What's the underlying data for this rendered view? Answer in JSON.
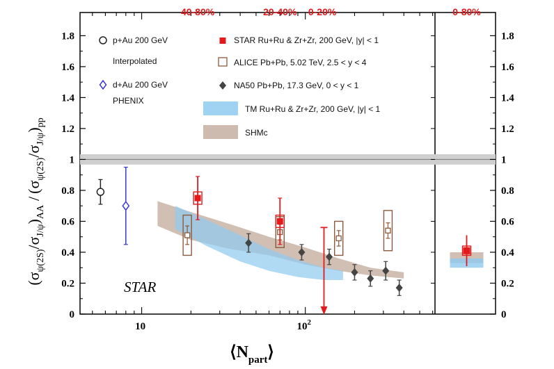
{
  "chart_data": {
    "type": "scatter",
    "ylabel": "(σψ(2S)/σJ/ψ)AA / (σψ(2S)/σJ/ψ)pp",
    "ylabel_parts": {
      "num_open": "(σ",
      "num_sub1": "ψ(2S)",
      "num_slash": "/σ",
      "num_sub2": "J/ψ",
      "num_close": ")",
      "num_aa": "AA",
      "divide": "/",
      "den_open": "(σ",
      "den_sub1": "ψ(2S)",
      "den_slash": "/σ",
      "den_sub2": "J/ψ",
      "den_close": ")",
      "den_pp": "pp"
    },
    "xlabel": "⟨Npart⟩",
    "xlabel_parts": {
      "open": "⟨N",
      "sub": "part",
      "close": "⟩"
    },
    "xscale": "log",
    "xlim": [
      4.2,
      620
    ],
    "ylim": [
      0,
      1.95
    ],
    "grid": false,
    "x_tick_labels": [
      {
        "value": 10,
        "label": "10"
      },
      {
        "value": 100,
        "label": "10",
        "exponent": "2"
      }
    ],
    "y_ticks": [
      {
        "value": 0,
        "label": "0"
      },
      {
        "value": 0.2,
        "label": "0.2"
      },
      {
        "value": 0.4,
        "label": "0.4"
      },
      {
        "value": 0.6,
        "label": "0.6"
      },
      {
        "value": 0.8,
        "label": "0.8"
      },
      {
        "value": 1,
        "label": "1"
      },
      {
        "value": 1.2,
        "label": "1.2"
      },
      {
        "value": 1.4,
        "label": "1.4"
      },
      {
        "value": 1.6,
        "label": "1.6"
      },
      {
        "value": 1.8,
        "label": "1.8"
      }
    ],
    "top_centrality_labels": [
      {
        "label": "40-80%",
        "x": 22
      },
      {
        "label": "20-40%",
        "x": 70
      },
      {
        "label": "0-20%",
        "x": 127
      }
    ],
    "right_panel_label": "0-80%",
    "reference_line": {
      "y": 1.0,
      "band": [
        0.98,
        1.02
      ]
    },
    "annotation": "STAR",
    "legend": [
      {
        "key": "pau",
        "label": "p+Au 200 GeV",
        "label2": "Interpolated",
        "color": "#222222",
        "marker": "open-circle"
      },
      {
        "key": "dau",
        "label": "d+Au 200 GeV",
        "label2": "PHENIX",
        "color": "#3a3acc",
        "marker": "open-diamond"
      },
      {
        "key": "star",
        "label": "STAR Ru+Ru & Zr+Zr, 200 GeV, |y| < 1",
        "color": "#e31a1c",
        "marker": "filled-square"
      },
      {
        "key": "alice",
        "label": "ALICE Pb+Pb, 5.02 TeV, 2.5 < y < 4",
        "color": "#8b5a3c",
        "marker": "open-square"
      },
      {
        "key": "na50",
        "label": "NA50 Pb+Pb, 17.3 GeV, 0 < y < 1",
        "color": "#444444",
        "marker": "filled-diamond"
      },
      {
        "key": "tm",
        "label": "TM Ru+Ru & Zr+Zr, 200 GeV, |y| < 1",
        "color": "#8fcaf0",
        "marker": "band"
      },
      {
        "key": "shmc",
        "label": "SHMc",
        "color": "#c9b4a7",
        "marker": "band"
      }
    ],
    "series": [
      {
        "name": "p+Au 200 GeV",
        "points": [
          {
            "x": 5.6,
            "y": 0.79,
            "err": 0.08
          }
        ]
      },
      {
        "name": "d+Au 200 GeV",
        "points": [
          {
            "x": 8.0,
            "y": 0.7,
            "err": 0.25
          }
        ]
      },
      {
        "name": "STAR Ru+Ru & Zr+Zr, 200 GeV, |y| < 1",
        "points": [
          {
            "x": 22,
            "y": 0.75,
            "err": 0.14,
            "sys": 0.04
          },
          {
            "x": 70,
            "y": 0.6,
            "err": 0.15,
            "sys": 0.04
          },
          {
            "x": 130,
            "y": 0.0,
            "upper_limit": 0.56
          }
        ]
      },
      {
        "name": "ALICE Pb+Pb, 5.02 TeV, 2.5 < y < 4",
        "points": [
          {
            "x": 19,
            "y": 0.51,
            "err": 0.06,
            "sys": 0.13
          },
          {
            "x": 70,
            "y": 0.53,
            "err": 0.05,
            "sys": 0.1
          },
          {
            "x": 160,
            "y": 0.49,
            "err": 0.05,
            "sys": 0.11
          },
          {
            "x": 320,
            "y": 0.54,
            "err": 0.05,
            "sys": 0.13
          }
        ]
      },
      {
        "name": "NA50 Pb+Pb, 17.3 GeV, 0 < y < 1",
        "points": [
          {
            "x": 45,
            "y": 0.46,
            "err": 0.06
          },
          {
            "x": 95,
            "y": 0.4,
            "err": 0.05
          },
          {
            "x": 140,
            "y": 0.37,
            "err": 0.05
          },
          {
            "x": 200,
            "y": 0.27,
            "err": 0.05
          },
          {
            "x": 250,
            "y": 0.23,
            "err": 0.05
          },
          {
            "x": 310,
            "y": 0.28,
            "err": 0.06
          },
          {
            "x": 375,
            "y": 0.17,
            "err": 0.05
          }
        ]
      },
      {
        "name": "TM Ru+Ru & Zr+Zr, 200 GeV, |y| < 1",
        "band": {
          "x": [
            16,
            25,
            40,
            60,
            90,
            130,
            170
          ],
          "lo": [
            0.55,
            0.44,
            0.34,
            0.28,
            0.24,
            0.22,
            0.22
          ],
          "hi": [
            0.7,
            0.61,
            0.51,
            0.42,
            0.35,
            0.3,
            0.28
          ]
        }
      },
      {
        "name": "SHMc",
        "band": {
          "x": [
            12.5,
            20,
            35,
            60,
            100,
            160,
            250,
            400
          ],
          "lo": [
            0.57,
            0.48,
            0.42,
            0.38,
            0.32,
            0.28,
            0.25,
            0.23
          ],
          "hi": [
            0.73,
            0.66,
            0.58,
            0.5,
            0.43,
            0.36,
            0.3,
            0.27
          ]
        }
      }
    ],
    "right_panel": {
      "label": "0-80%",
      "star_point": {
        "y": 0.41,
        "err": 0.1,
        "sys": 0.03
      },
      "tm_band": [
        0.3,
        0.36
      ],
      "shmc_band": [
        0.33,
        0.4
      ]
    }
  }
}
